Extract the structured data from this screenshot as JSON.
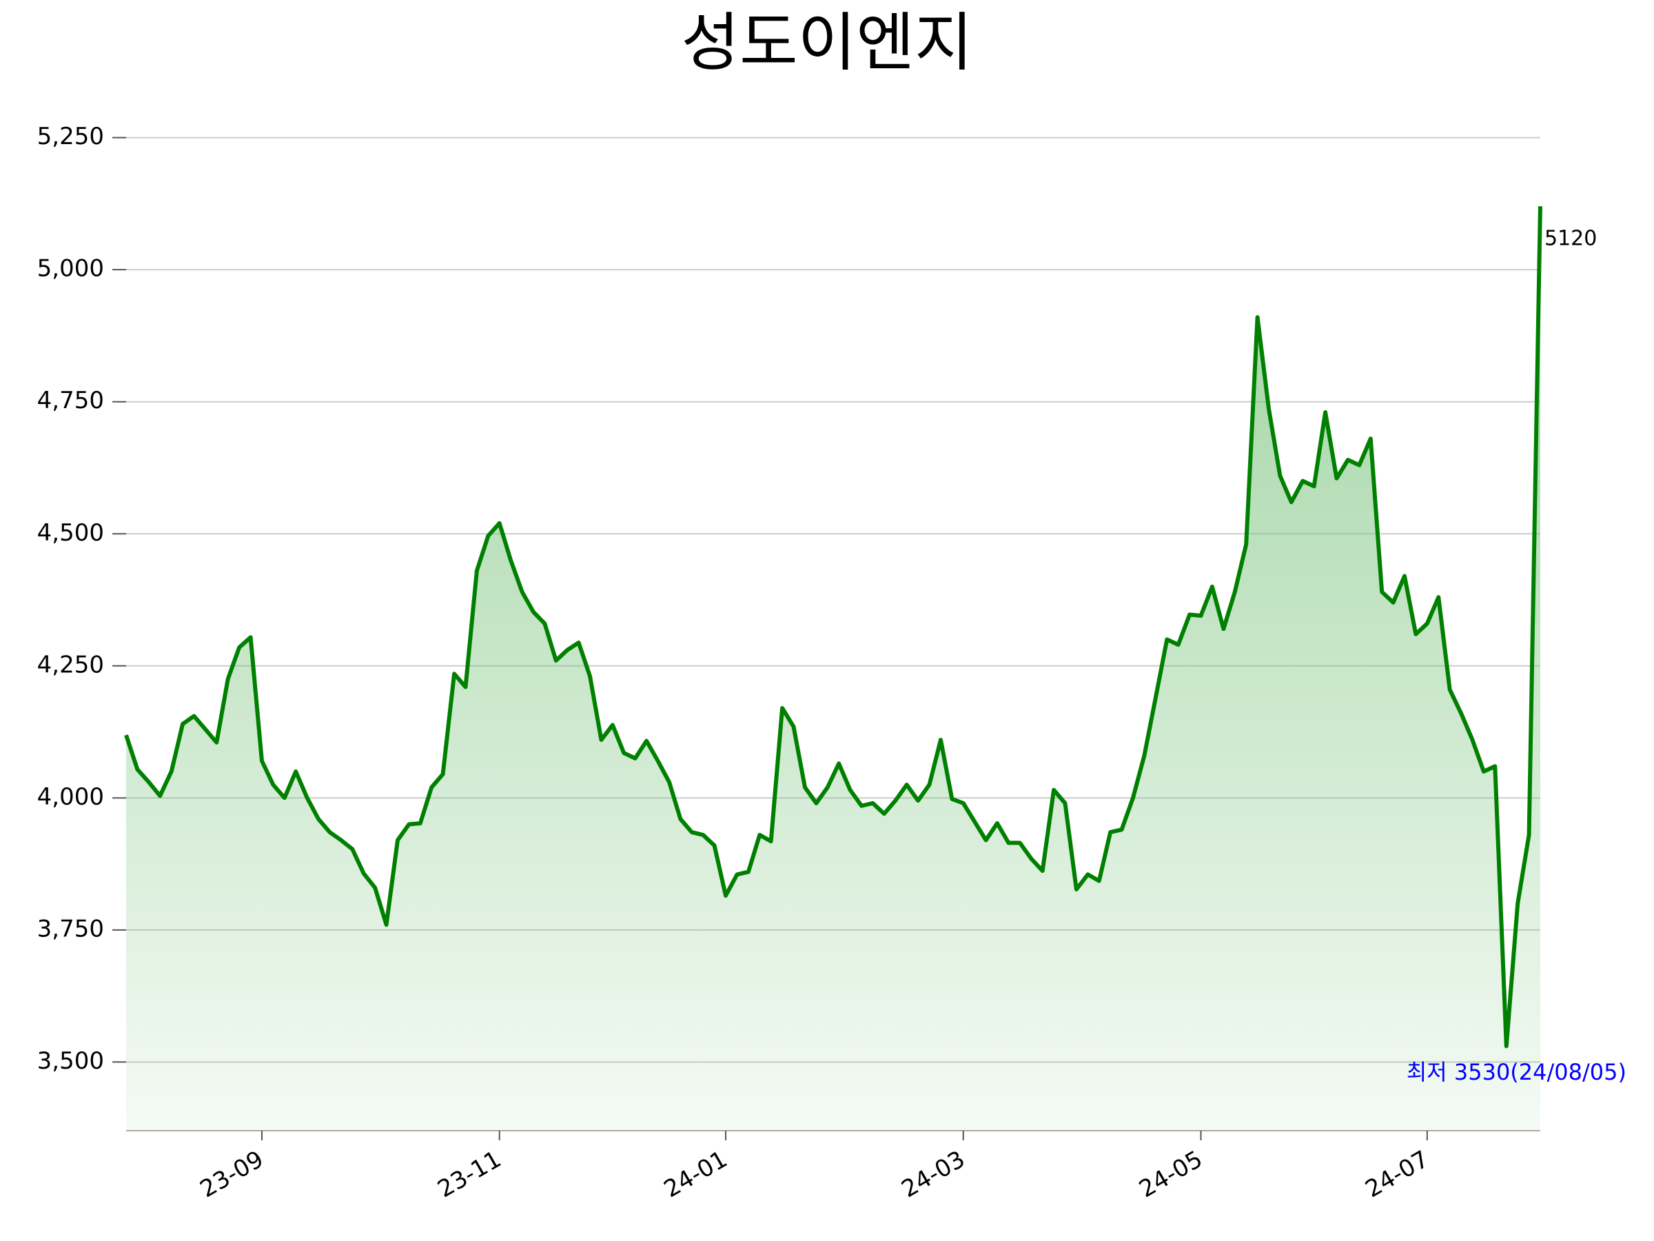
{
  "chart_data": {
    "type": "line",
    "title": "성도이엔지",
    "categories": [
      null,
      null,
      null,
      null,
      null,
      null,
      null,
      null,
      null,
      null,
      null,
      null,
      "23-09",
      null,
      null,
      null,
      null,
      null,
      null,
      null,
      null,
      null,
      null,
      null,
      null,
      null,
      null,
      null,
      null,
      null,
      null,
      null,
      null,
      "23-11",
      null,
      null,
      null,
      null,
      null,
      null,
      null,
      null,
      null,
      null,
      null,
      null,
      null,
      null,
      null,
      null,
      null,
      null,
      null,
      "24-01",
      null,
      null,
      null,
      null,
      null,
      null,
      null,
      null,
      null,
      null,
      null,
      null,
      null,
      null,
      null,
      null,
      null,
      null,
      null,
      null,
      "24-03",
      null,
      null,
      null,
      null,
      null,
      null,
      null,
      null,
      null,
      null,
      null,
      null,
      null,
      null,
      null,
      null,
      null,
      null,
      null,
      null,
      "24-05",
      null,
      null,
      null,
      null,
      null,
      null,
      null,
      null,
      null,
      null,
      null,
      null,
      null,
      null,
      null,
      null,
      null,
      null,
      null,
      "24-07",
      null,
      null,
      null,
      null,
      null,
      null,
      null,
      null,
      null,
      null
    ],
    "values": [
      4119,
      4054,
      4030,
      4004,
      4050,
      4140,
      4155,
      4130,
      4105,
      4225,
      4285,
      4304,
      4070,
      4025,
      4000,
      4050,
      4000,
      3960,
      3935,
      3920,
      3903,
      3857,
      3830,
      3760,
      3920,
      3950,
      3952,
      4020,
      4045,
      4235,
      4210,
      4430,
      4496,
      4520,
      4450,
      4390,
      4352,
      4330,
      4260,
      4280,
      4294,
      4230,
      4110,
      4138,
      4085,
      4075,
      4108,
      4070,
      4030,
      3960,
      3935,
      3930,
      3910,
      3815,
      3855,
      3860,
      3930,
      3918,
      4170,
      4135,
      4020,
      3990,
      4020,
      4065,
      4015,
      3985,
      3990,
      3970,
      3995,
      4025,
      3995,
      4025,
      4110,
      3998,
      3990,
      3955,
      3920,
      3952,
      3915,
      3915,
      3885,
      3862,
      4015,
      3990,
      3827,
      3855,
      3843,
      3935,
      3940,
      4000,
      4080,
      4190,
      4300,
      4290,
      4347,
      4345,
      4400,
      4320,
      4390,
      4480,
      4910,
      4737,
      4610,
      4560,
      4600,
      4590,
      4730,
      4605,
      4640,
      4630,
      4680,
      4390,
      4370,
      4420,
      4310,
      4330,
      4380,
      4205,
      4160,
      4110,
      4050,
      4060,
      3530,
      3800,
      3930,
      5120
    ],
    "color": "green",
    "ylim": [
      3370,
      5290
    ],
    "yticks": [
      {
        "value": 3500,
        "label": "3,500"
      },
      {
        "value": 3750,
        "label": "3,750"
      },
      {
        "value": 4000,
        "label": "4,000"
      },
      {
        "value": 4250,
        "label": "4,250"
      },
      {
        "value": 4500,
        "label": "4,500"
      },
      {
        "value": 4750,
        "label": "4,750"
      },
      {
        "value": 5000,
        "label": "5,000"
      },
      {
        "value": 5250,
        "label": "5,250"
      }
    ],
    "grid": true,
    "annotations": [
      {
        "text": "최저 3530(24/08/05)",
        "color": "blue"
      }
    ]
  }
}
